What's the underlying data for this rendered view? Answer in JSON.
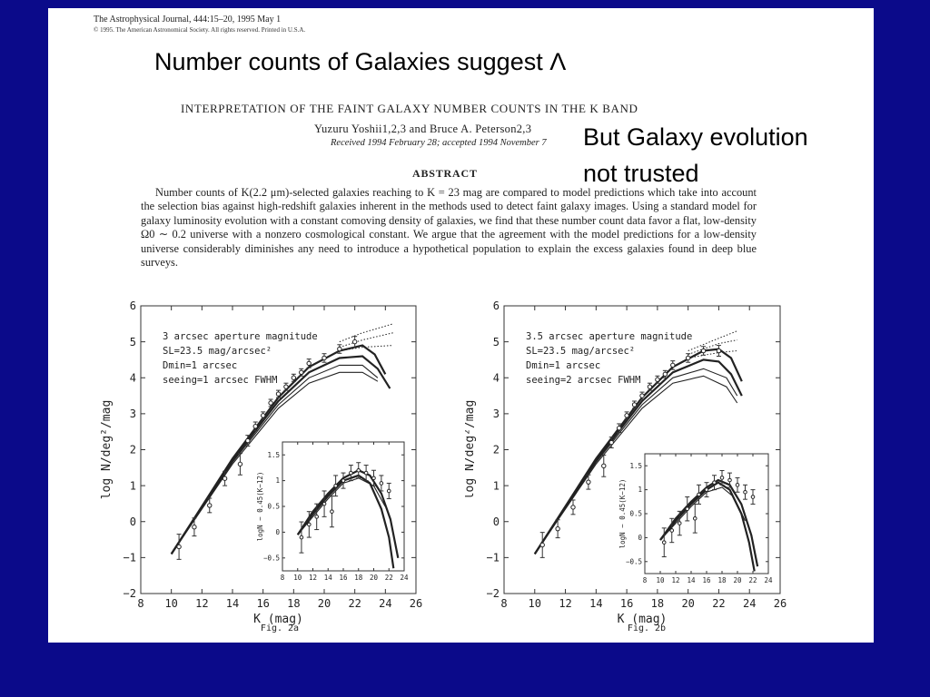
{
  "slide": {
    "title": "Number counts of Galaxies  suggest Λ",
    "callout_line1": "But Galaxy evolution",
    "callout_line2": "not trusted"
  },
  "paper": {
    "journal": "The Astrophysical Journal, 444:15–20, 1995 May 1",
    "copyright": "© 1995. The American Astronomical Society. All rights reserved. Printed in U.S.A.",
    "title": "INTERPRETATION OF THE FAINT GALAXY NUMBER COUNTS IN THE K BAND",
    "authors": "Yuzuru Yoshii1,2,3 and Bruce A. Peterson2,3",
    "received": "Received 1994 February 28; accepted 1994 November 7",
    "abstract_heading": "ABSTRACT",
    "abstract": "Number counts of K(2.2 μm)-selected galaxies reaching to K = 23 mag are compared to model predictions which take into account the selection bias against high-redshift galaxies inherent in the methods used to detect faint galaxy images. Using a standard model for galaxy luminosity evolution with a constant comoving density of galaxies, we find that these number count data favor a flat, low-density Ω0 ∼ 0.2 universe with a nonzero cosmological constant. We argue that the agreement with the model predictions for a low-density universe considerably diminishes any need to introduce a hypothetical population to explain the excess galaxies found in deep blue surveys."
  },
  "chart_data": [
    {
      "type": "line",
      "caption": "Fig. 2a",
      "xlabel": "K (mag)",
      "ylabel": "log N/deg²/mag",
      "xlim": [
        8,
        26
      ],
      "ylim": [
        -2,
        6
      ],
      "xticks": [
        8,
        10,
        12,
        14,
        16,
        18,
        20,
        22,
        24,
        26
      ],
      "yticks": [
        -2,
        -1,
        0,
        1,
        2,
        3,
        4,
        5,
        6
      ],
      "annotation": [
        "3 arcsec aperture magnitude",
        "SL=23.5 mag/arcsec²",
        "Dmin=1 arcsec",
        "seeing=1 arcsec FWHM"
      ],
      "model_curves": [
        {
          "style": "solid-bold",
          "points": [
            [
              10,
              -0.9
            ],
            [
              14,
              1.75
            ],
            [
              17,
              3.45
            ],
            [
              19,
              4.3
            ],
            [
              21,
              4.75
            ],
            [
              22.5,
              4.9
            ],
            [
              23.3,
              4.65
            ],
            [
              24,
              4.1
            ]
          ]
        },
        {
          "style": "solid-bold",
          "points": [
            [
              10,
              -0.9
            ],
            [
              14,
              1.7
            ],
            [
              17,
              3.35
            ],
            [
              19,
              4.15
            ],
            [
              21,
              4.55
            ],
            [
              22.5,
              4.6
            ],
            [
              23.5,
              4.25
            ],
            [
              24.3,
              3.7
            ]
          ]
        },
        {
          "style": "solid",
          "points": [
            [
              10,
              -0.9
            ],
            [
              14,
              1.65
            ],
            [
              17,
              3.25
            ],
            [
              19,
              4.0
            ],
            [
              21,
              4.35
            ],
            [
              22.5,
              4.35
            ],
            [
              23.5,
              4.0
            ]
          ]
        },
        {
          "style": "solid",
          "points": [
            [
              10,
              -0.9
            ],
            [
              14,
              1.6
            ],
            [
              17,
              3.15
            ],
            [
              19,
              3.85
            ],
            [
              21,
              4.15
            ],
            [
              22.5,
              4.15
            ],
            [
              23.5,
              3.9
            ]
          ]
        },
        {
          "style": "dotted",
          "points": [
            [
              21,
              5.0
            ],
            [
              22.5,
              5.25
            ],
            [
              24.5,
              5.5
            ]
          ]
        },
        {
          "style": "dotted",
          "points": [
            [
              21,
              4.85
            ],
            [
              22.5,
              5.05
            ],
            [
              24.5,
              5.25
            ]
          ]
        },
        {
          "style": "dotted",
          "points": [
            [
              21,
              4.75
            ],
            [
              22.5,
              4.85
            ],
            [
              24.5,
              4.9
            ]
          ]
        }
      ],
      "observations": [
        {
          "x": 10.5,
          "y": -0.7,
          "err": 0.35
        },
        {
          "x": 11.5,
          "y": -0.15,
          "err": 0.25
        },
        {
          "x": 12.5,
          "y": 0.45,
          "err": 0.2
        },
        {
          "x": 13.5,
          "y": 1.2,
          "err": 0.2
        },
        {
          "x": 14.5,
          "y": 1.6,
          "err": 0.3
        },
        {
          "x": 15.0,
          "y": 2.25,
          "err": 0.15
        },
        {
          "x": 15.5,
          "y": 2.65,
          "err": 0.12
        },
        {
          "x": 16.0,
          "y": 2.95,
          "err": 0.1
        },
        {
          "x": 16.5,
          "y": 3.3,
          "err": 0.1
        },
        {
          "x": 17.0,
          "y": 3.55,
          "err": 0.1
        },
        {
          "x": 17.5,
          "y": 3.75,
          "err": 0.1
        },
        {
          "x": 18.0,
          "y": 4.0,
          "err": 0.1
        },
        {
          "x": 18.5,
          "y": 4.15,
          "err": 0.1
        },
        {
          "x": 19.0,
          "y": 4.4,
          "err": 0.12
        },
        {
          "x": 20.0,
          "y": 4.55,
          "err": 0.12
        },
        {
          "x": 21.0,
          "y": 4.8,
          "err": 0.12
        },
        {
          "x": 22.0,
          "y": 5.0,
          "err": 0.15
        }
      ],
      "inset": {
        "xlabel": "",
        "ylabel": "logN − 0.45(K−12)",
        "xlim": [
          8,
          24
        ],
        "ylim": [
          -0.75,
          1.75
        ],
        "xticks": [
          8,
          10,
          12,
          14,
          16,
          18,
          20,
          22,
          24
        ],
        "yticks": [
          -0.5,
          0,
          0.5,
          1,
          1.5
        ],
        "curves": [
          {
            "style": "solid-bold",
            "points": [
              [
                10,
                -0.05
              ],
              [
                12,
                0.35
              ],
              [
                14,
                0.7
              ],
              [
                16,
                1.0
              ],
              [
                18,
                1.1
              ],
              [
                19.5,
                0.95
              ],
              [
                21,
                0.45
              ],
              [
                22,
                -0.1
              ],
              [
                22.6,
                -0.7
              ]
            ]
          },
          {
            "style": "solid-bold",
            "points": [
              [
                10,
                -0.05
              ],
              [
                12,
                0.4
              ],
              [
                14,
                0.75
              ],
              [
                16,
                1.05
              ],
              [
                18,
                1.2
              ],
              [
                19.5,
                1.1
              ],
              [
                21,
                0.75
              ],
              [
                22.2,
                0.25
              ],
              [
                23.2,
                -0.5
              ]
            ]
          },
          {
            "style": "solid",
            "points": [
              [
                10,
                -0.05
              ],
              [
                12,
                0.3
              ],
              [
                14,
                0.65
              ],
              [
                16,
                0.95
              ],
              [
                18,
                1.05
              ],
              [
                20,
                0.9
              ],
              [
                21.5,
                0.5
              ]
            ]
          }
        ],
        "observations": [
          {
            "x": 10.5,
            "y": -0.1,
            "err": 0.3
          },
          {
            "x": 11.5,
            "y": 0.15,
            "err": 0.25
          },
          {
            "x": 12.5,
            "y": 0.3,
            "err": 0.25
          },
          {
            "x": 13.5,
            "y": 0.55,
            "err": 0.25
          },
          {
            "x": 14.5,
            "y": 0.4,
            "err": 0.3
          },
          {
            "x": 15.0,
            "y": 0.9,
            "err": 0.2
          },
          {
            "x": 16.0,
            "y": 1.0,
            "err": 0.15
          },
          {
            "x": 17.0,
            "y": 1.15,
            "err": 0.15
          },
          {
            "x": 18.0,
            "y": 1.2,
            "err": 0.15
          },
          {
            "x": 19.0,
            "y": 1.15,
            "err": 0.15
          },
          {
            "x": 20.0,
            "y": 1.05,
            "err": 0.15
          },
          {
            "x": 21.0,
            "y": 0.95,
            "err": 0.15
          },
          {
            "x": 22.0,
            "y": 0.8,
            "err": 0.15
          }
        ]
      }
    },
    {
      "type": "line",
      "caption": "Fig. 2b",
      "xlabel": "K (mag)",
      "ylabel": "log N/deg²/mag",
      "xlim": [
        8,
        26
      ],
      "ylim": [
        -2,
        6
      ],
      "xticks": [
        8,
        10,
        12,
        14,
        16,
        18,
        20,
        22,
        24,
        26
      ],
      "yticks": [
        -2,
        -1,
        0,
        1,
        2,
        3,
        4,
        5,
        6
      ],
      "annotation": [
        "3.5 arcsec aperture magnitude",
        "SL=23.5 mag/arcsec²",
        "Dmin=1 arcsec",
        "seeing=2 arcsec FWHM"
      ],
      "model_curves": [
        {
          "style": "solid-bold",
          "points": [
            [
              10,
              -0.9
            ],
            [
              14,
              1.75
            ],
            [
              17,
              3.45
            ],
            [
              19,
              4.3
            ],
            [
              21,
              4.75
            ],
            [
              22,
              4.8
            ],
            [
              22.8,
              4.55
            ],
            [
              23.5,
              3.9
            ]
          ]
        },
        {
          "style": "solid-bold",
          "points": [
            [
              10,
              -0.9
            ],
            [
              14,
              1.7
            ],
            [
              17,
              3.35
            ],
            [
              19,
              4.15
            ],
            [
              21,
              4.5
            ],
            [
              22,
              4.45
            ],
            [
              22.8,
              4.1
            ],
            [
              23.5,
              3.5
            ]
          ]
        },
        {
          "style": "solid",
          "points": [
            [
              10,
              -0.9
            ],
            [
              14,
              1.65
            ],
            [
              17,
              3.25
            ],
            [
              19,
              4.0
            ],
            [
              21,
              4.25
            ],
            [
              22.5,
              4.0
            ],
            [
              23.2,
              3.5
            ]
          ]
        },
        {
          "style": "solid",
          "points": [
            [
              10,
              -0.9
            ],
            [
              14,
              1.6
            ],
            [
              17,
              3.15
            ],
            [
              19,
              3.85
            ],
            [
              21,
              4.05
            ],
            [
              22.5,
              3.75
            ],
            [
              23.2,
              3.3
            ]
          ]
        },
        {
          "style": "dotted",
          "points": [
            [
              20,
              4.75
            ],
            [
              22,
              5.1
            ],
            [
              23.2,
              5.3
            ]
          ]
        },
        {
          "style": "dotted",
          "points": [
            [
              20,
              4.65
            ],
            [
              22,
              4.95
            ],
            [
              23.2,
              5.05
            ]
          ]
        },
        {
          "style": "dotted",
          "points": [
            [
              20,
              4.55
            ],
            [
              22,
              4.7
            ],
            [
              23.2,
              4.75
            ]
          ]
        }
      ],
      "observations": [
        {
          "x": 10.5,
          "y": -0.65,
          "err": 0.35
        },
        {
          "x": 11.5,
          "y": -0.2,
          "err": 0.25
        },
        {
          "x": 12.5,
          "y": 0.4,
          "err": 0.2
        },
        {
          "x": 13.5,
          "y": 1.1,
          "err": 0.2
        },
        {
          "x": 14.5,
          "y": 1.55,
          "err": 0.3
        },
        {
          "x": 15.0,
          "y": 2.2,
          "err": 0.15
        },
        {
          "x": 15.5,
          "y": 2.6,
          "err": 0.12
        },
        {
          "x": 16.0,
          "y": 2.95,
          "err": 0.1
        },
        {
          "x": 16.5,
          "y": 3.25,
          "err": 0.1
        },
        {
          "x": 17.0,
          "y": 3.5,
          "err": 0.1
        },
        {
          "x": 17.5,
          "y": 3.75,
          "err": 0.1
        },
        {
          "x": 18.0,
          "y": 3.95,
          "err": 0.1
        },
        {
          "x": 18.5,
          "y": 4.1,
          "err": 0.1
        },
        {
          "x": 19.0,
          "y": 4.35,
          "err": 0.12
        },
        {
          "x": 20.0,
          "y": 4.55,
          "err": 0.12
        },
        {
          "x": 21.0,
          "y": 4.75,
          "err": 0.12
        },
        {
          "x": 22.0,
          "y": 4.75,
          "err": 0.15
        }
      ],
      "inset": {
        "xlabel": "",
        "ylabel": "logN − 0.45(K−12)",
        "xlim": [
          8,
          24
        ],
        "ylim": [
          -0.75,
          1.75
        ],
        "xticks": [
          8,
          10,
          12,
          14,
          16,
          18,
          20,
          22,
          24
        ],
        "yticks": [
          -0.5,
          0,
          0.5,
          1,
          1.5
        ],
        "curves": [
          {
            "style": "solid-bold",
            "points": [
              [
                10,
                -0.05
              ],
              [
                12,
                0.35
              ],
              [
                14,
                0.7
              ],
              [
                16,
                1.0
              ],
              [
                17.5,
                1.15
              ],
              [
                19,
                1.0
              ],
              [
                20.5,
                0.5
              ],
              [
                21.5,
                -0.1
              ],
              [
                22.2,
                -0.7
              ]
            ]
          },
          {
            "style": "solid-bold",
            "points": [
              [
                10,
                -0.05
              ],
              [
                12,
                0.4
              ],
              [
                14,
                0.75
              ],
              [
                16,
                1.05
              ],
              [
                17.5,
                1.2
              ],
              [
                19,
                1.1
              ],
              [
                20.5,
                0.7
              ],
              [
                21.8,
                0.05
              ],
              [
                22.6,
                -0.6
              ]
            ]
          },
          {
            "style": "solid",
            "points": [
              [
                10,
                -0.05
              ],
              [
                12,
                0.3
              ],
              [
                14,
                0.65
              ],
              [
                16,
                0.95
              ],
              [
                18,
                1.05
              ],
              [
                19.5,
                0.85
              ],
              [
                21,
                0.35
              ]
            ]
          }
        ],
        "observations": [
          {
            "x": 10.5,
            "y": -0.1,
            "err": 0.3
          },
          {
            "x": 11.5,
            "y": 0.15,
            "err": 0.25
          },
          {
            "x": 12.5,
            "y": 0.3,
            "err": 0.25
          },
          {
            "x": 13.5,
            "y": 0.6,
            "err": 0.25
          },
          {
            "x": 14.5,
            "y": 0.4,
            "err": 0.3
          },
          {
            "x": 15.0,
            "y": 0.9,
            "err": 0.2
          },
          {
            "x": 16.0,
            "y": 1.0,
            "err": 0.15
          },
          {
            "x": 17.0,
            "y": 1.15,
            "err": 0.15
          },
          {
            "x": 18.0,
            "y": 1.25,
            "err": 0.15
          },
          {
            "x": 19.0,
            "y": 1.2,
            "err": 0.15
          },
          {
            "x": 20.0,
            "y": 1.1,
            "err": 0.15
          },
          {
            "x": 21.0,
            "y": 0.95,
            "err": 0.15
          },
          {
            "x": 22.0,
            "y": 0.85,
            "err": 0.15
          }
        ]
      }
    }
  ]
}
